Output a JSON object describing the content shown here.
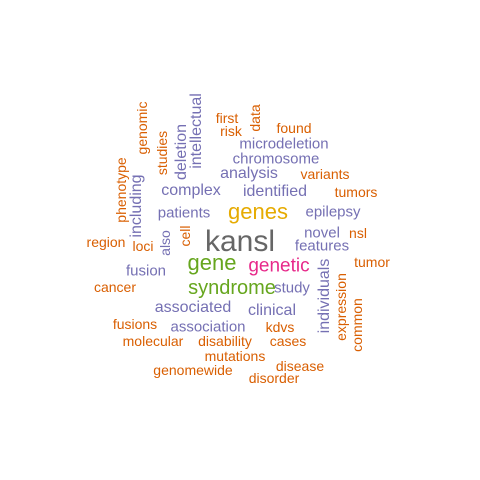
{
  "palette": {
    "orange": "#d95f02",
    "purple": "#7570b3",
    "gold": "#e6ab02",
    "green": "#66a61e",
    "magenta": "#e7298a",
    "dark": "#666666"
  },
  "words": [
    {
      "text": "kansl",
      "color": "dark",
      "vertical": false
    },
    {
      "text": "genes",
      "color": "gold",
      "vertical": false
    },
    {
      "text": "gene",
      "color": "green",
      "vertical": false
    },
    {
      "text": "genetic",
      "color": "magenta",
      "vertical": false
    },
    {
      "text": "syndrome",
      "color": "green",
      "vertical": false
    },
    {
      "text": "patients",
      "color": "purple",
      "vertical": false
    },
    {
      "text": "identified",
      "color": "purple",
      "vertical": false
    },
    {
      "text": "complex",
      "color": "purple",
      "vertical": false
    },
    {
      "text": "analysis",
      "color": "purple",
      "vertical": false
    },
    {
      "text": "chromosome",
      "color": "purple",
      "vertical": false
    },
    {
      "text": "microdeletion",
      "color": "purple",
      "vertical": false
    },
    {
      "text": "epilepsy",
      "color": "purple",
      "vertical": false
    },
    {
      "text": "novel",
      "color": "purple",
      "vertical": false
    },
    {
      "text": "features",
      "color": "purple",
      "vertical": false
    },
    {
      "text": "study",
      "color": "purple",
      "vertical": false
    },
    {
      "text": "associated",
      "color": "purple",
      "vertical": false
    },
    {
      "text": "clinical",
      "color": "purple",
      "vertical": false
    },
    {
      "text": "association",
      "color": "purple",
      "vertical": false
    },
    {
      "text": "fusion",
      "color": "purple",
      "vertical": false
    },
    {
      "text": "loci",
      "color": "orange",
      "vertical": false
    },
    {
      "text": "region",
      "color": "orange",
      "vertical": false
    },
    {
      "text": "cancer",
      "color": "orange",
      "vertical": false
    },
    {
      "text": "fusions",
      "color": "orange",
      "vertical": false
    },
    {
      "text": "molecular",
      "color": "orange",
      "vertical": false
    },
    {
      "text": "disability",
      "color": "orange",
      "vertical": false
    },
    {
      "text": "kdvs",
      "color": "orange",
      "vertical": false
    },
    {
      "text": "cases",
      "color": "orange",
      "vertical": false
    },
    {
      "text": "mutations",
      "color": "orange",
      "vertical": false
    },
    {
      "text": "genomewide",
      "color": "orange",
      "vertical": false
    },
    {
      "text": "disease",
      "color": "orange",
      "vertical": false
    },
    {
      "text": "disorder",
      "color": "orange",
      "vertical": false
    },
    {
      "text": "variants",
      "color": "orange",
      "vertical": false
    },
    {
      "text": "tumors",
      "color": "orange",
      "vertical": false
    },
    {
      "text": "nsl",
      "color": "orange",
      "vertical": false
    },
    {
      "text": "tumor",
      "color": "orange",
      "vertical": false
    },
    {
      "text": "found",
      "color": "orange",
      "vertical": false
    },
    {
      "text": "first",
      "color": "orange",
      "vertical": false
    },
    {
      "text": "risk",
      "color": "orange",
      "vertical": false
    },
    {
      "text": "data",
      "color": "orange",
      "vertical": true
    },
    {
      "text": "intellectual",
      "color": "purple",
      "vertical": true
    },
    {
      "text": "deletion",
      "color": "purple",
      "vertical": true
    },
    {
      "text": "studies",
      "color": "orange",
      "vertical": true
    },
    {
      "text": "genomic",
      "color": "orange",
      "vertical": true
    },
    {
      "text": "phenotype",
      "color": "orange",
      "vertical": true
    },
    {
      "text": "including",
      "color": "purple",
      "vertical": true
    },
    {
      "text": "also",
      "color": "purple",
      "vertical": true
    },
    {
      "text": "cell",
      "color": "orange",
      "vertical": true
    },
    {
      "text": "individuals",
      "color": "purple",
      "vertical": true
    },
    {
      "text": "expression",
      "color": "orange",
      "vertical": true
    },
    {
      "text": "common",
      "color": "orange",
      "vertical": true
    }
  ]
}
